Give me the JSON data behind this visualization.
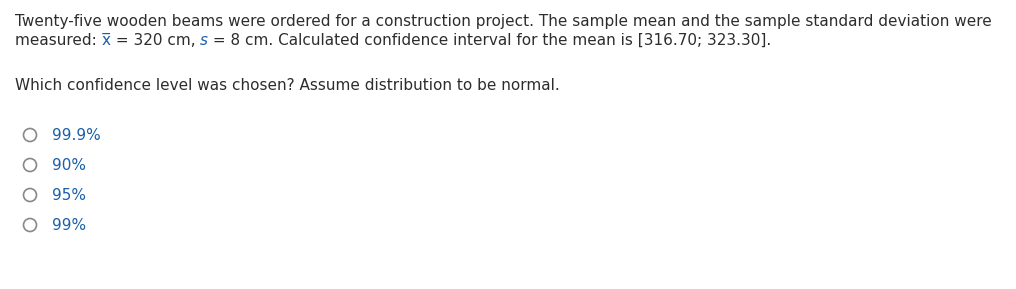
{
  "background_color": "#ffffff",
  "dark_text": "#2d2d2d",
  "blue_text": "#1a5fa8",
  "circle_color": "#888888",
  "line1": "Twenty-five wooden beams were ordered for a construction project. The sample mean and the sample standard deviation were",
  "line2_seg1": "measured: ",
  "line2_xbar": "x̅",
  "line2_seg2": " = 320 cm, ",
  "line2_s": "s",
  "line2_seg3": " = 8 cm. Calculated confidence interval for the mean is [316.70; 323.30].",
  "question": "Which confidence level was chosen? Assume distribution to be normal.",
  "options": [
    "99.9%",
    "90%",
    "95%",
    "99%"
  ],
  "font_size": 11.0,
  "fig_width": 10.16,
  "fig_height": 2.89,
  "dpi": 100
}
